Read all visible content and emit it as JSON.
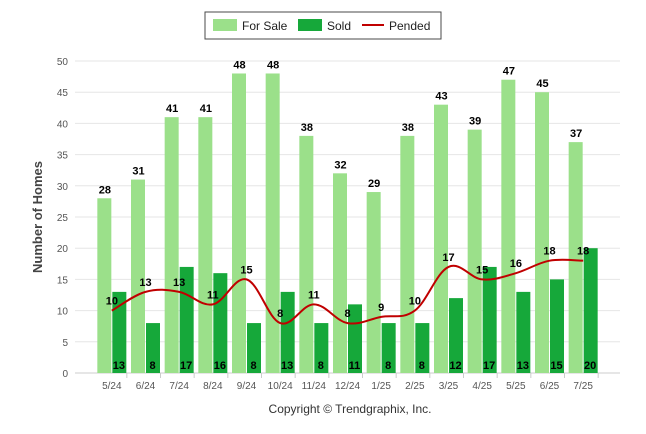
{
  "chart_data": {
    "type": "bar",
    "categories": [
      "5/24",
      "6/24",
      "7/24",
      "8/24",
      "9/24",
      "10/24",
      "11/24",
      "12/24",
      "1/25",
      "2/25",
      "3/25",
      "4/25",
      "5/25",
      "6/25",
      "7/25"
    ],
    "series": [
      {
        "name": "For Sale",
        "kind": "bar",
        "color": "#9be08a",
        "values": [
          28,
          31,
          41,
          41,
          48,
          48,
          38,
          32,
          29,
          38,
          43,
          39,
          47,
          45,
          37
        ]
      },
      {
        "name": "Sold",
        "kind": "bar",
        "color": "#16a83a",
        "values": [
          13,
          8,
          17,
          16,
          8,
          13,
          8,
          11,
          8,
          8,
          12,
          17,
          13,
          15,
          20
        ]
      },
      {
        "name": "Pended",
        "kind": "line",
        "color": "#c00000",
        "values": [
          10,
          13,
          13,
          11,
          15,
          8,
          11,
          8,
          9,
          10,
          17,
          15,
          16,
          18,
          18
        ]
      }
    ],
    "ylabel": "Number of Homes",
    "xlabel": "",
    "ylim": [
      0,
      50
    ],
    "yticks": [
      0,
      5,
      10,
      15,
      20,
      25,
      30,
      35,
      40,
      45,
      50
    ],
    "grid": true,
    "legend_position": "top-center",
    "copyright": "Copyright © Trendgraphix, Inc."
  }
}
